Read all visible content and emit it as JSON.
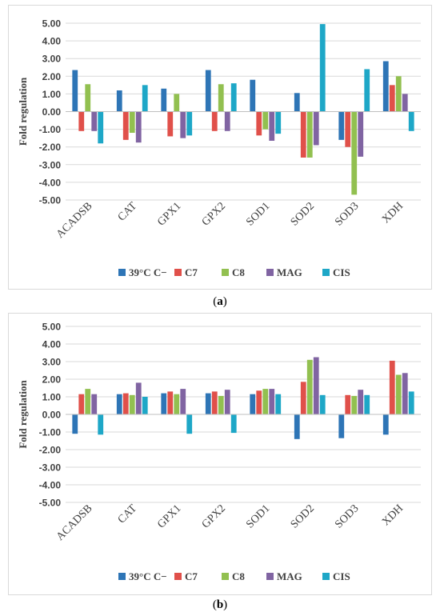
{
  "colors": {
    "39°C C−": "#2e75b6",
    "C7": "#e0504a",
    "C8": "#92c050",
    "MAG": "#8064a2",
    "CIS": "#1ea7c7",
    "grid": "#d9d9d9",
    "text": "#404040"
  },
  "captions": {
    "a": "a",
    "b": "b"
  },
  "chart_data": [
    {
      "type": "bar",
      "panel": "a",
      "ylabel": "Fold regulation",
      "xlabel": "",
      "ylim": [
        -5,
        5
      ],
      "yticks": [
        "5.00",
        "4.00",
        "3.00",
        "2.00",
        "1.00",
        "0.00",
        "-1.00",
        "-2.00",
        "-3.00",
        "-4.00",
        "-5.00"
      ],
      "categories": [
        "ACADSB",
        "CAT",
        "GPX1",
        "GPX2",
        "SOD1",
        "SOD2",
        "SOD3",
        "XDH"
      ],
      "legend_position": "bottom",
      "grid": true,
      "series": [
        {
          "name": "39°C C−",
          "values": [
            2.35,
            1.2,
            1.3,
            2.35,
            1.8,
            1.05,
            -1.6,
            2.85
          ]
        },
        {
          "name": "C7",
          "values": [
            -1.1,
            -1.6,
            -1.4,
            -1.1,
            -1.35,
            -2.6,
            -2.0,
            1.5
          ]
        },
        {
          "name": "C8",
          "values": [
            1.55,
            -1.2,
            1.0,
            1.55,
            -1.0,
            -2.6,
            -4.7,
            2.0
          ]
        },
        {
          "name": "MAG",
          "values": [
            -1.1,
            -1.75,
            -1.5,
            -1.1,
            -1.65,
            -1.9,
            -2.55,
            1.0
          ]
        },
        {
          "name": "CIS",
          "values": [
            -1.8,
            1.5,
            -1.35,
            1.6,
            -1.25,
            4.95,
            2.4,
            -1.1
          ]
        }
      ]
    },
    {
      "type": "bar",
      "panel": "b",
      "ylabel": "Fold regulation",
      "xlabel": "",
      "ylim": [
        -5,
        5
      ],
      "yticks": [
        "5.00",
        "4.00",
        "3.00",
        "2.00",
        "1.00",
        "0.00",
        "-1.00",
        "-2.00",
        "-3.00",
        "-4.00",
        "-5.00"
      ],
      "categories": [
        "ACADSB",
        "CAT",
        "GPX1",
        "GPX2",
        "SOD1",
        "SOD2",
        "SOD3",
        "XDH"
      ],
      "legend_position": "bottom",
      "grid": true,
      "series": [
        {
          "name": "39°C C−",
          "values": [
            -1.1,
            1.15,
            1.2,
            1.2,
            1.15,
            -1.4,
            -1.35,
            -1.15
          ]
        },
        {
          "name": "C7",
          "values": [
            1.15,
            1.2,
            1.3,
            1.3,
            1.35,
            1.85,
            1.1,
            3.05
          ]
        },
        {
          "name": "C8",
          "values": [
            1.45,
            1.1,
            1.15,
            1.05,
            1.45,
            3.1,
            1.05,
            2.25
          ]
        },
        {
          "name": "MAG",
          "values": [
            1.15,
            1.8,
            1.45,
            1.4,
            1.45,
            3.25,
            1.4,
            2.35
          ]
        },
        {
          "name": "CIS",
          "values": [
            -1.15,
            1.0,
            -1.1,
            -1.05,
            1.15,
            1.1,
            1.1,
            1.3
          ]
        }
      ]
    }
  ]
}
